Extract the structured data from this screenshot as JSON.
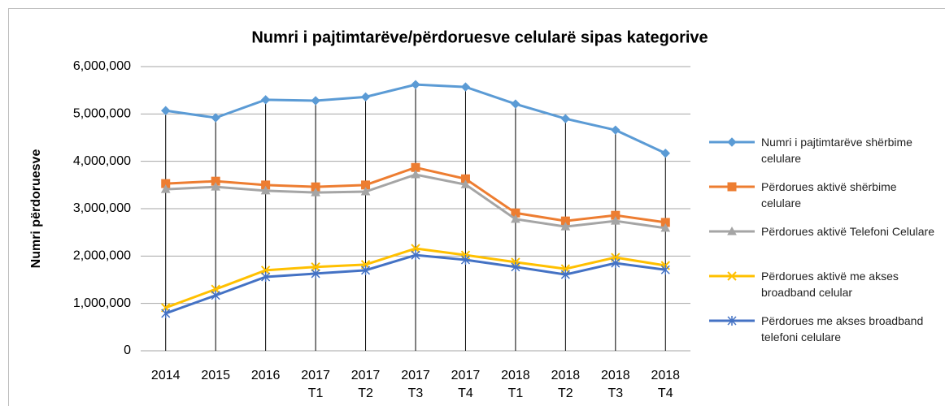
{
  "chart_data": {
    "type": "line",
    "title": "Numri i pajtimtarëve/përdoruesve celularë sipas kategorive",
    "y_label": "Numri përdoruesve",
    "categories": [
      "2014",
      "2015",
      "2016",
      "2017 T1",
      "2017 T2",
      "2017 T3",
      "2017 T4",
      "2018 T1",
      "2018 T2",
      "2018 T3",
      "2018 T4"
    ],
    "series": [
      {
        "name": "Numri i pajtimtarëve shërbime celulare",
        "color": "#5b9bd5",
        "marker": "diamond",
        "values": [
          5070000,
          4920000,
          5300000,
          5280000,
          5360000,
          5620000,
          5570000,
          5210000,
          4900000,
          4660000,
          4170000
        ]
      },
      {
        "name": "Përdorues aktivë shërbime celulare",
        "color": "#ed7d31",
        "marker": "square",
        "values": [
          3530000,
          3580000,
          3500000,
          3460000,
          3500000,
          3870000,
          3630000,
          2910000,
          2740000,
          2860000,
          2710000
        ]
      },
      {
        "name": "Përdorues aktivë Telefoni Celulare",
        "color": "#a5a5a5",
        "marker": "triangle",
        "values": [
          3410000,
          3460000,
          3380000,
          3340000,
          3360000,
          3720000,
          3510000,
          2780000,
          2620000,
          2740000,
          2590000
        ]
      },
      {
        "name": "Përdorues aktivë me akses broadband celular",
        "color": "#ffc000",
        "marker": "x",
        "values": [
          910000,
          1300000,
          1700000,
          1770000,
          1820000,
          2160000,
          2020000,
          1870000,
          1730000,
          1970000,
          1800000
        ]
      },
      {
        "name": "Përdorues  me akses broadband  telefoni celulare",
        "color": "#4472c4",
        "marker": "star",
        "values": [
          790000,
          1170000,
          1560000,
          1630000,
          1700000,
          2020000,
          1920000,
          1770000,
          1610000,
          1850000,
          1710000
        ]
      }
    ],
    "ylim": [
      0,
      6000000
    ],
    "yticks": [
      0,
      {
        "value": 1000000,
        "label": "1,000,000"
      },
      {
        "value": 2000000,
        "label": "2,000,000"
      },
      {
        "value": 3000000,
        "label": "3,000,000"
      },
      {
        "value": 4000000,
        "label": "4,000,000"
      },
      {
        "value": 5000000,
        "label": "5,000,000"
      },
      {
        "value": 6000000,
        "label": "6,000,000"
      }
    ],
    "grid": true,
    "drop_lines": true,
    "legend": "right"
  }
}
